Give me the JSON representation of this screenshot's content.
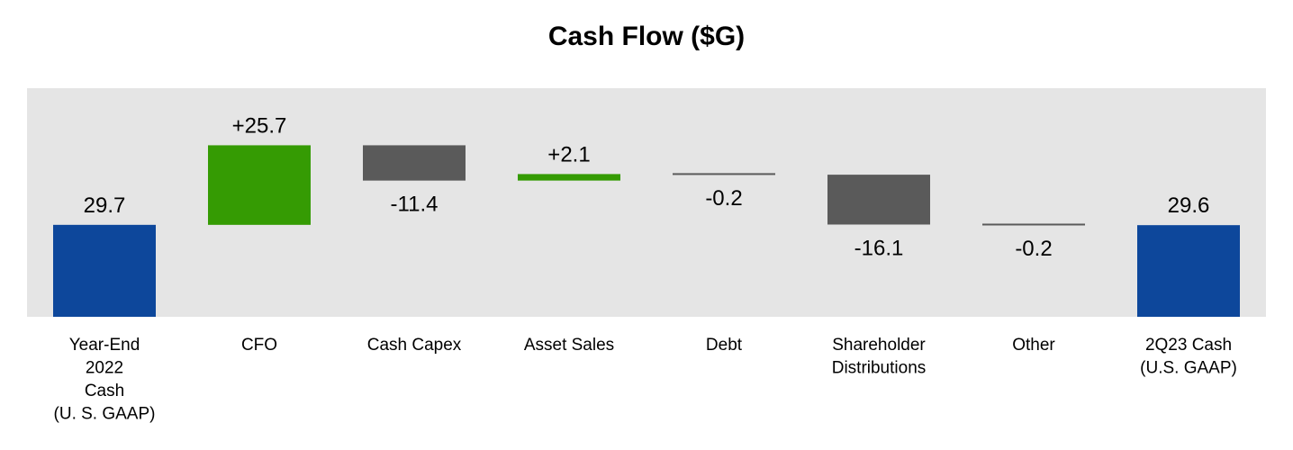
{
  "chart_data": {
    "type": "bar",
    "title": "Cash Flow ($G)",
    "xlabel": "",
    "ylabel": "",
    "categories": [
      [
        "Year-End",
        "2022",
        "Cash",
        "(U. S. GAAP)"
      ],
      [
        "CFO"
      ],
      [
        "Cash Capex"
      ],
      [
        "Asset Sales"
      ],
      [
        "Debt"
      ],
      [
        "Shareholder",
        "Distributions"
      ],
      [
        "Other"
      ],
      [
        "2Q23 Cash",
        "(U.S. GAAP)"
      ]
    ],
    "values": [
      29.7,
      25.7,
      -11.4,
      2.1,
      -0.2,
      -16.1,
      -0.2,
      29.6
    ],
    "value_labels": [
      "29.7",
      "+25.7",
      "-11.4",
      "+2.1",
      "-0.2",
      "-16.1",
      "-0.2",
      "29.6"
    ],
    "kinds": [
      "total",
      "delta",
      "delta",
      "delta",
      "delta",
      "delta",
      "delta",
      "total"
    ],
    "colors": {
      "total": "#0d479b",
      "positive": "#359b03",
      "negative": "#5a5a5a",
      "background": "#e5e5e5"
    },
    "grid": false
  }
}
